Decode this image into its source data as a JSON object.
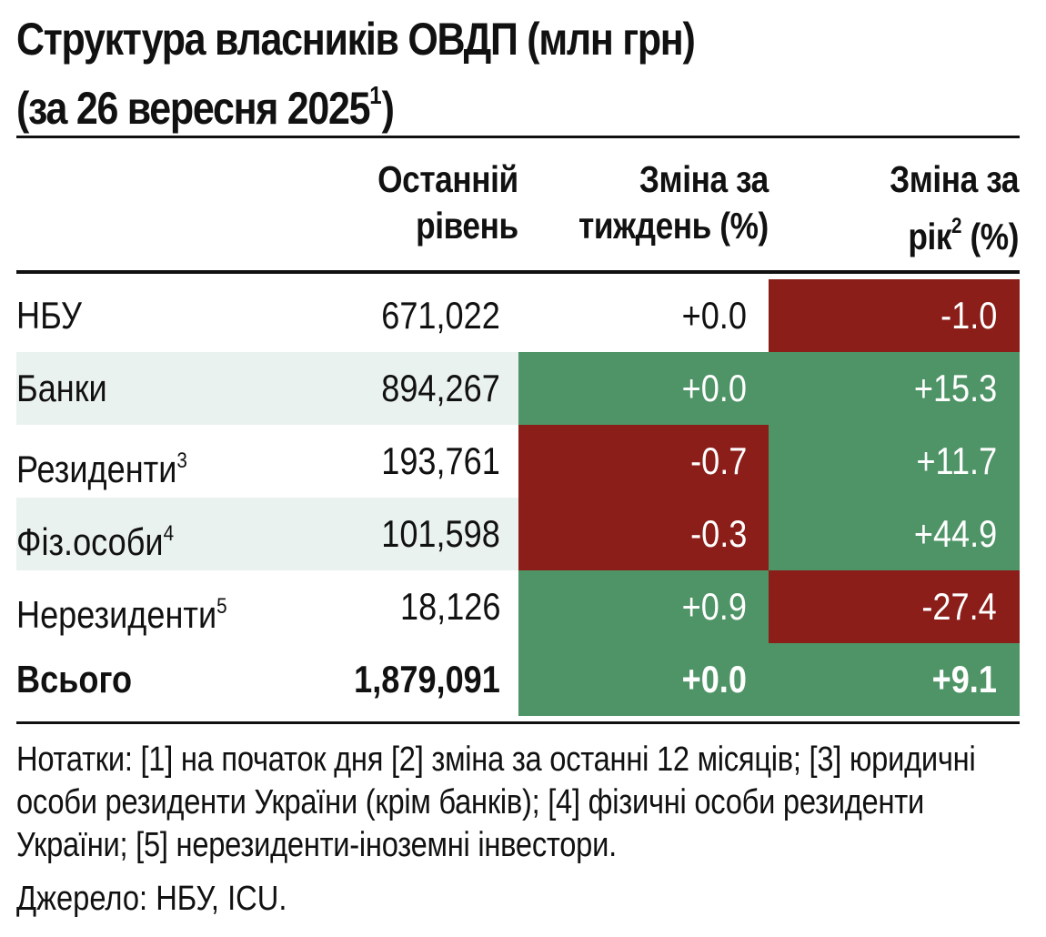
{
  "title": {
    "line1": "Структура власників ОВДП (млн грн)",
    "line2": "(за 26 вересня 2025",
    "line2_sup": "1",
    "line2_end": ")"
  },
  "headers": {
    "level_1": "Останній",
    "level_2": "рівень",
    "week_1": "Зміна за",
    "week_2": "тиждень (%)",
    "year_1": "Зміна за",
    "year_2": "рік",
    "year_sup": "2",
    "year_3": " (%)"
  },
  "rows": [
    {
      "label": "НБУ",
      "sup": "",
      "level": "671,022",
      "week": "+0.0",
      "year": "-1.0"
    },
    {
      "label": "Банки",
      "sup": "",
      "level": "894,267",
      "week": "+0.0",
      "year": "+15.3"
    },
    {
      "label": "Резиденти",
      "sup": "3",
      "level": "193,761",
      "week": "-0.7",
      "year": "+11.7"
    },
    {
      "label": "Фіз.особи",
      "sup": "4",
      "level": "101,598",
      "week": "-0.3",
      "year": "+44.9"
    },
    {
      "label": "Нерезиденти",
      "sup": "5",
      "level": "18,126",
      "week": "+0.9",
      "year": "-27.4"
    },
    {
      "label": "Всього",
      "sup": "",
      "level": "1,879,091",
      "week": "+0.0",
      "year": "+9.1"
    }
  ],
  "colors": {
    "positive": "#4e9466",
    "negative": "#8b1e19"
  },
  "notes": "Нотатки: [1] на початок дня [2] зміна за останні 12 місяців; [3] юридичні особи  резиденти України (крім банків); [4] фізичні особи резиденти України; [5] нерезиденти-іноземні інвестори.",
  "source": "Джерело: НБУ, ICU."
}
